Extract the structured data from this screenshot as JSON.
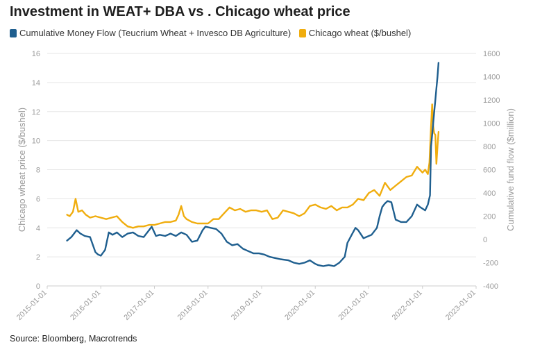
{
  "colors": {
    "blue": "#1f5f8f",
    "orange": "#f0ad0e",
    "grid": "#e6e6e6",
    "axis_text": "#9a9a9a"
  },
  "chart_data": {
    "type": "line",
    "title": "Investment in WEAT+ DBA vs . Chicago wheat price",
    "source": "Source: Bloomberg, Macrotrends",
    "xlabel": "",
    "y_left_label": "Chicago wheat price ($/bushel)",
    "y_right_label": "Cumulative fund flow ($million)",
    "x_ticks": [
      "2015-01-01",
      "2016-01-01",
      "2017-01-01",
      "2018-01-01",
      "2019-01-01",
      "2020-01-01",
      "2021-01-01",
      "2022-01-01",
      "2023-01-01"
    ],
    "y_left_ticks": [
      0,
      2,
      4,
      6,
      8,
      10,
      12,
      14,
      16
    ],
    "y_right_ticks": [
      -400,
      -200,
      0,
      200,
      400,
      600,
      800,
      1000,
      1200,
      1400,
      1600
    ],
    "ylim_left": [
      0,
      16
    ],
    "ylim_right": [
      -400,
      1600
    ],
    "xlim": [
      2015.0,
      2023.0
    ],
    "grid": "horizontal",
    "legend_position": "top-left",
    "series": [
      {
        "name": "Cumulative Money Flow (Teucrium Wheat + Invesco DB Agriculture)",
        "axis": "right",
        "color": "#1f5f8f",
        "x": [
          2015.37,
          2015.45,
          2015.55,
          2015.62,
          2015.7,
          2015.8,
          2015.9,
          2015.95,
          2016.0,
          2016.08,
          2016.15,
          2016.22,
          2016.3,
          2016.4,
          2016.5,
          2016.6,
          2016.7,
          2016.8,
          2016.9,
          2016.95,
          2017.03,
          2017.1,
          2017.2,
          2017.3,
          2017.4,
          2017.5,
          2017.6,
          2017.7,
          2017.8,
          2017.9,
          2017.95,
          2018.05,
          2018.15,
          2018.25,
          2018.35,
          2018.45,
          2018.55,
          2018.65,
          2018.75,
          2018.85,
          2018.95,
          2019.05,
          2019.15,
          2019.25,
          2019.35,
          2019.5,
          2019.6,
          2019.7,
          2019.8,
          2019.9,
          2020.0,
          2020.05,
          2020.15,
          2020.25,
          2020.35,
          2020.45,
          2020.55,
          2020.6,
          2020.68,
          2020.75,
          2020.8,
          2020.9,
          2020.95,
          2021.05,
          2021.15,
          2021.2,
          2021.25,
          2021.3,
          2021.35,
          2021.42,
          2021.5,
          2021.6,
          2021.7,
          2021.8,
          2021.9,
          2021.95,
          2022.05,
          2022.1,
          2022.14,
          2022.16,
          2022.18,
          2022.2,
          2022.22,
          2022.24,
          2022.26,
          2022.28,
          2022.3
        ],
        "values": [
          -10,
          20,
          80,
          50,
          30,
          20,
          -110,
          -130,
          -140,
          -90,
          60,
          40,
          60,
          20,
          50,
          60,
          30,
          20,
          80,
          110,
          30,
          40,
          30,
          50,
          30,
          60,
          40,
          -20,
          -10,
          80,
          110,
          100,
          90,
          50,
          -20,
          -50,
          -40,
          -80,
          -100,
          -120,
          -120,
          -130,
          -150,
          -160,
          -170,
          -180,
          -200,
          -210,
          -200,
          -180,
          -210,
          -220,
          -230,
          -220,
          -230,
          -200,
          -150,
          -30,
          40,
          100,
          80,
          10,
          20,
          40,
          100,
          200,
          280,
          310,
          330,
          320,
          170,
          150,
          150,
          200,
          300,
          280,
          250,
          300,
          380,
          800,
          900,
          1000,
          1100,
          1200,
          1300,
          1400,
          1520
        ]
      },
      {
        "name": "Chicago wheat ($/bushel)",
        "axis": "left",
        "color": "#f0ad0e",
        "x": [
          2015.37,
          2015.42,
          2015.48,
          2015.53,
          2015.58,
          2015.65,
          2015.72,
          2015.8,
          2015.9,
          2016.0,
          2016.1,
          2016.2,
          2016.3,
          2016.4,
          2016.5,
          2016.6,
          2016.7,
          2016.8,
          2016.9,
          2017.0,
          2017.1,
          2017.2,
          2017.3,
          2017.4,
          2017.45,
          2017.5,
          2017.55,
          2017.6,
          2017.7,
          2017.8,
          2017.9,
          2018.0,
          2018.1,
          2018.2,
          2018.3,
          2018.4,
          2018.5,
          2018.6,
          2018.7,
          2018.8,
          2018.9,
          2019.0,
          2019.1,
          2019.2,
          2019.3,
          2019.4,
          2019.5,
          2019.6,
          2019.7,
          2019.8,
          2019.9,
          2020.0,
          2020.1,
          2020.2,
          2020.3,
          2020.4,
          2020.5,
          2020.6,
          2020.7,
          2020.8,
          2020.9,
          2021.0,
          2021.1,
          2021.2,
          2021.3,
          2021.4,
          2021.5,
          2021.6,
          2021.7,
          2021.8,
          2021.9,
          2022.0,
          2022.05,
          2022.1,
          2022.13,
          2022.16,
          2022.18,
          2022.2,
          2022.22,
          2022.24,
          2022.26,
          2022.28,
          2022.3
        ],
        "values": [
          4.9,
          4.8,
          5.1,
          6.0,
          5.1,
          5.2,
          4.9,
          4.7,
          4.8,
          4.7,
          4.6,
          4.7,
          4.8,
          4.4,
          4.1,
          4.0,
          4.1,
          4.1,
          4.2,
          4.2,
          4.3,
          4.4,
          4.4,
          4.5,
          4.9,
          5.5,
          4.8,
          4.6,
          4.4,
          4.3,
          4.3,
          4.3,
          4.6,
          4.6,
          5.0,
          5.4,
          5.2,
          5.3,
          5.1,
          5.2,
          5.2,
          5.1,
          5.2,
          4.6,
          4.7,
          5.2,
          5.1,
          5.0,
          4.8,
          5.0,
          5.5,
          5.6,
          5.4,
          5.3,
          5.5,
          5.2,
          5.4,
          5.4,
          5.6,
          6.0,
          5.9,
          6.4,
          6.6,
          6.2,
          7.1,
          6.6,
          6.9,
          7.2,
          7.5,
          7.6,
          8.2,
          7.8,
          8.0,
          7.7,
          8.5,
          11.0,
          12.5,
          11.0,
          10.5,
          10.4,
          8.4,
          9.6,
          10.6
        ]
      }
    ]
  }
}
